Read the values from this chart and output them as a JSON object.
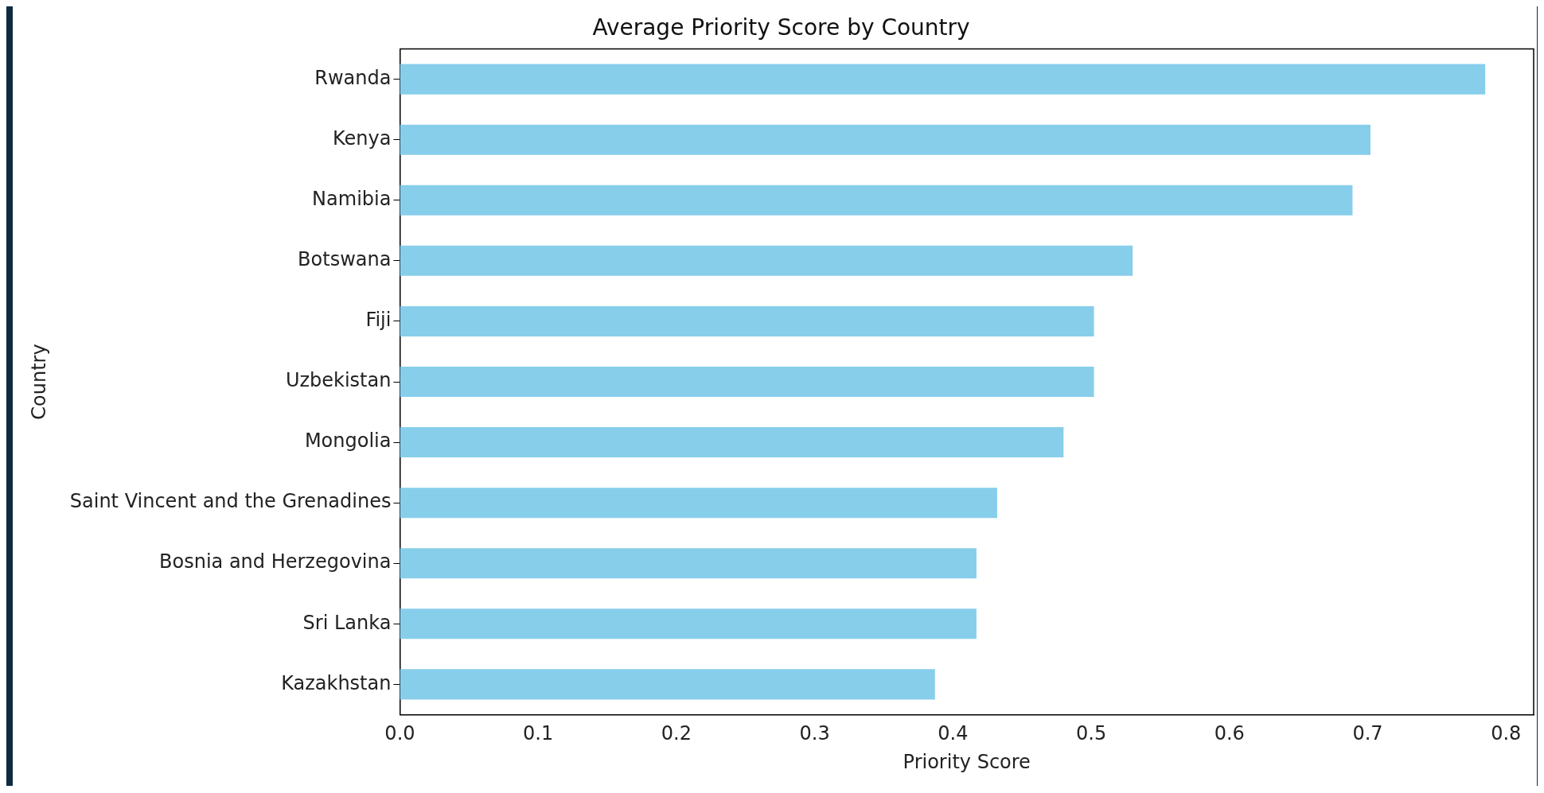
{
  "chart_data": {
    "type": "bar",
    "orientation": "horizontal",
    "title": "Average Priority Score by Country",
    "xlabel": "Priority Score",
    "ylabel": "Country",
    "categories": [
      "Rwanda",
      "Kenya",
      "Namibia",
      "Botswana",
      "Fiji",
      "Uzbekistan",
      "Mongolia",
      "Saint Vincent and the Grenadines",
      "Bosnia and Herzegovina",
      "Sri Lanka",
      "Kazakhstan"
    ],
    "values": [
      0.785,
      0.702,
      0.689,
      0.53,
      0.502,
      0.502,
      0.48,
      0.432,
      0.417,
      0.417,
      0.387
    ],
    "color": "#87ceeb",
    "xlim": [
      0,
      0.82
    ],
    "xticks": [
      {
        "value": 0,
        "label": "0.0"
      },
      0.1,
      0.2,
      0.3,
      0.4,
      0.5,
      0.6,
      0.7,
      0.8
    ],
    "grid": false,
    "legend": false
  }
}
